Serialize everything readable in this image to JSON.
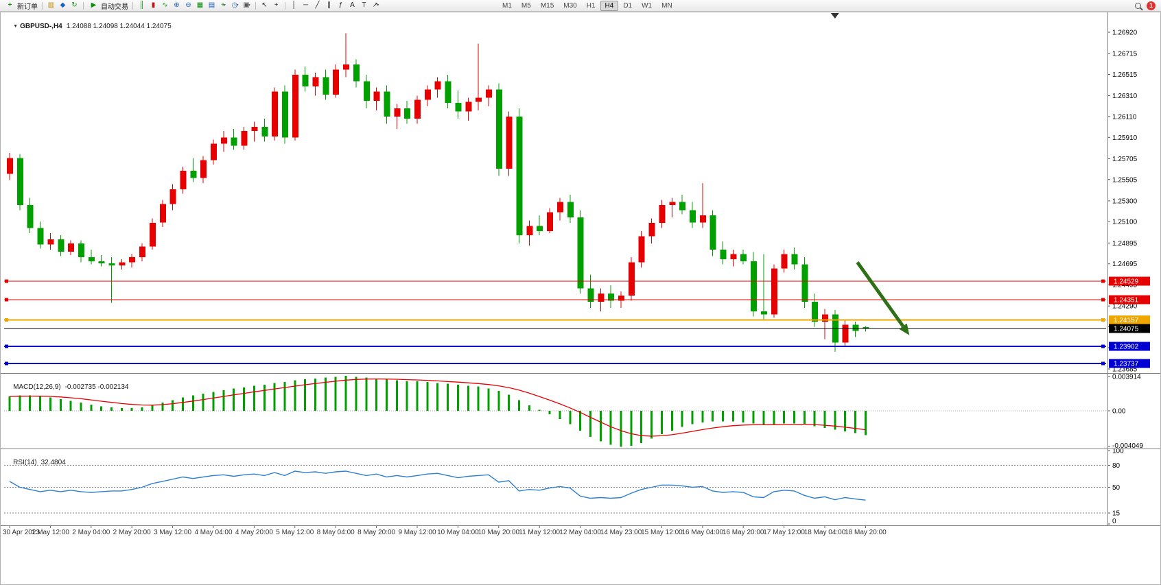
{
  "toolbar": {
    "new_order": {
      "icon": "new-order-icon",
      "label": "新订单"
    },
    "quick_icons": [
      "charts-icon",
      "profiles-icon",
      "refresh-icon"
    ],
    "autotrading": {
      "icon": "autotrading-icon",
      "label": "自动交易"
    },
    "chart_tools": [
      "bars-icon",
      "candles-icon",
      "line-chart-icon",
      "zoom-in-icon",
      "zoom-out-icon",
      "tile-windows-icon",
      "arrange-icon",
      "new-chart-icon",
      "period-clock-icon",
      "templates-icon"
    ],
    "pointer_tools": [
      "cursor-icon",
      "crosshair-icon"
    ],
    "draw_tools": [
      "vertical-line-icon",
      "horizontal-line-icon",
      "trendline-icon",
      "channel-icon",
      "fibonacci-icon",
      "text-icon",
      "label-icon",
      "arrows-icon"
    ],
    "timeframes": [
      "M1",
      "M5",
      "M15",
      "M30",
      "H1",
      "H4",
      "D1",
      "W1",
      "MN"
    ],
    "active_timeframe": "H4",
    "notification": {
      "count": "1",
      "color": "#e03131"
    }
  },
  "chart_data": [
    {
      "type": "candlestick",
      "symbol_text": "GBPUSD-,H4",
      "ohlc_text": "1.24088 1.24098 1.24044 1.24075",
      "timeframe": "H4",
      "up_color": "#e60000",
      "down_color": "#00a000",
      "label_every": 4,
      "x_labels": [
        "30 Apr 2023",
        "1 May 12:00",
        "2 May 04:00",
        "2 May 20:00",
        "3 May 12:00",
        "4 May 04:00",
        "4 May 20:00",
        "5 May 12:00",
        "8 May 04:00",
        "8 May 20:00",
        "9 May 12:00",
        "10 May 04:00",
        "10 May 20:00",
        "11 May 12:00",
        "12 May 04:00",
        "14 May 23:00",
        "15 May 12:00",
        "16 May 04:00",
        "16 May 20:00",
        "17 May 12:00",
        "18 May 04:00",
        "18 May 20:00"
      ],
      "y_axis_ticks": [
        "1.26920",
        "1.26715",
        "1.26515",
        "1.26310",
        "1.26110",
        "1.25910",
        "1.25705",
        "1.25505",
        "1.25300",
        "1.25100",
        "1.24895",
        "1.24695",
        "1.24495",
        "1.24290",
        "1.24090",
        "1.23890",
        "1.23685"
      ],
      "candles": [
        [
          1.2556,
          1.2576,
          1.255,
          1.2571
        ],
        [
          1.2571,
          1.2575,
          1.2521,
          1.2526
        ],
        [
          1.2526,
          1.2533,
          1.2499,
          1.2504
        ],
        [
          1.2504,
          1.251,
          1.2484,
          1.2488
        ],
        [
          1.2488,
          1.2499,
          1.2483,
          1.2493
        ],
        [
          1.2493,
          1.2497,
          1.2477,
          1.2481
        ],
        [
          1.2481,
          1.2492,
          1.2478,
          1.2489
        ],
        [
          1.2489,
          1.2492,
          1.2471,
          1.2476
        ],
        [
          1.2476,
          1.2483,
          1.2469,
          1.2472
        ],
        [
          1.2472,
          1.2478,
          1.2467,
          1.247
        ],
        [
          1.247,
          1.2476,
          1.2432,
          1.2468
        ],
        [
          1.2468,
          1.2474,
          1.2464,
          1.2471
        ],
        [
          1.2471,
          1.2479,
          1.2466,
          1.2476
        ],
        [
          1.2476,
          1.2489,
          1.2472,
          1.2486
        ],
        [
          1.2486,
          1.2513,
          1.2483,
          1.2509
        ],
        [
          1.2509,
          1.2531,
          1.2505,
          1.2527
        ],
        [
          1.2527,
          1.2546,
          1.2521,
          1.2541
        ],
        [
          1.2541,
          1.2563,
          1.2537,
          1.2559
        ],
        [
          1.2559,
          1.2571,
          1.2548,
          1.2552
        ],
        [
          1.2552,
          1.2573,
          1.2547,
          1.2569
        ],
        [
          1.2569,
          1.2589,
          1.2565,
          1.2585
        ],
        [
          1.2585,
          1.2597,
          1.2577,
          1.2591
        ],
        [
          1.2591,
          1.2599,
          1.2579,
          1.2583
        ],
        [
          1.2583,
          1.2601,
          1.2579,
          1.2597
        ],
        [
          1.2597,
          1.2606,
          1.2587,
          1.2601
        ],
        [
          1.2601,
          1.2609,
          1.2587,
          1.2592
        ],
        [
          1.2592,
          1.2639,
          1.2588,
          1.2635
        ],
        [
          1.2635,
          1.2641,
          1.2585,
          1.2591
        ],
        [
          1.2591,
          1.2656,
          1.2588,
          1.2651
        ],
        [
          1.2651,
          1.2659,
          1.2635,
          1.264
        ],
        [
          1.264,
          1.2653,
          1.2631,
          1.2649
        ],
        [
          1.2649,
          1.2656,
          1.2627,
          1.2632
        ],
        [
          1.2632,
          1.2661,
          1.2629,
          1.2656
        ],
        [
          1.2656,
          1.2691,
          1.2649,
          1.2661
        ],
        [
          1.2661,
          1.2666,
          1.2639,
          1.2645
        ],
        [
          1.2645,
          1.2651,
          1.2619,
          1.2626
        ],
        [
          1.2626,
          1.2639,
          1.2617,
          1.2635
        ],
        [
          1.2635,
          1.2641,
          1.2604,
          1.2611
        ],
        [
          1.2611,
          1.2623,
          1.2599,
          1.2619
        ],
        [
          1.2619,
          1.2626,
          1.2604,
          1.2609
        ],
        [
          1.2609,
          1.2631,
          1.2604,
          1.2627
        ],
        [
          1.2627,
          1.2641,
          1.2621,
          1.2637
        ],
        [
          1.2637,
          1.2649,
          1.2629,
          1.2645
        ],
        [
          1.2645,
          1.2651,
          1.2619,
          1.2624
        ],
        [
          1.2624,
          1.2636,
          1.2609,
          1.2616
        ],
        [
          1.2616,
          1.2629,
          1.2607,
          1.2625
        ],
        [
          1.2625,
          1.2681,
          1.2617,
          1.2629
        ],
        [
          1.2629,
          1.2641,
          1.2621,
          1.2637
        ],
        [
          1.2637,
          1.2643,
          1.2554,
          1.2561
        ],
        [
          1.2561,
          1.2616,
          1.2554,
          1.2611
        ],
        [
          1.2611,
          1.2619,
          1.2489,
          1.2497
        ],
        [
          1.2497,
          1.2511,
          1.2487,
          1.2506
        ],
        [
          1.2506,
          1.2516,
          1.2497,
          1.2501
        ],
        [
          1.2501,
          1.2523,
          1.2499,
          1.2519
        ],
        [
          1.2519,
          1.2533,
          1.2511,
          1.2529
        ],
        [
          1.2529,
          1.2536,
          1.2509,
          1.2514
        ],
        [
          1.2514,
          1.2521,
          1.2441,
          1.2446
        ],
        [
          1.2446,
          1.2459,
          1.2427,
          1.2433
        ],
        [
          1.2433,
          1.2446,
          1.2424,
          1.2441
        ],
        [
          1.2441,
          1.2449,
          1.2427,
          1.2434
        ],
        [
          1.2434,
          1.2443,
          1.2427,
          1.2439
        ],
        [
          1.2439,
          1.2476,
          1.2434,
          1.2471
        ],
        [
          1.2471,
          1.2501,
          1.2466,
          1.2496
        ],
        [
          1.2496,
          1.2513,
          1.2489,
          1.2509
        ],
        [
          1.2509,
          1.2531,
          1.2504,
          1.2526
        ],
        [
          1.2526,
          1.2533,
          1.2514,
          1.2529
        ],
        [
          1.2529,
          1.2536,
          1.2517,
          1.2521
        ],
        [
          1.2521,
          1.2529,
          1.2504,
          1.2509
        ],
        [
          1.2509,
          1.2547,
          1.2504,
          1.2516
        ],
        [
          1.2516,
          1.2521,
          1.2477,
          1.2483
        ],
        [
          1.2483,
          1.2491,
          1.2469,
          1.2474
        ],
        [
          1.2474,
          1.2483,
          1.2467,
          1.2479
        ],
        [
          1.2479,
          1.2483,
          1.2469,
          1.2472
        ],
        [
          1.2472,
          1.2481,
          1.2419,
          1.2424
        ],
        [
          1.2424,
          1.2479,
          1.2416,
          1.2421
        ],
        [
          1.2421,
          1.2469,
          1.2418,
          1.2465
        ],
        [
          1.2465,
          1.2483,
          1.2461,
          1.2479
        ],
        [
          1.2479,
          1.2485,
          1.2464,
          1.2469
        ],
        [
          1.2469,
          1.2476,
          1.2427,
          1.2433
        ],
        [
          1.2433,
          1.2441,
          1.2409,
          1.2414
        ],
        [
          1.2414,
          1.2426,
          1.2397,
          1.2421
        ],
        [
          1.2421,
          1.2425,
          1.2385,
          1.2394
        ],
        [
          1.2394,
          1.2416,
          1.2391,
          1.2411
        ],
        [
          1.2411,
          1.2414,
          1.2399,
          1.2405
        ],
        [
          1.24088,
          1.24098,
          1.24044,
          1.24075
        ]
      ],
      "hlines": [
        {
          "label": "1.24529",
          "price": 1.24529,
          "color": "#e60000",
          "width": 1
        },
        {
          "label": "1.24351",
          "price": 1.24351,
          "color": "#e60000",
          "width": 1
        },
        {
          "label": "1.24157",
          "price": 1.24157,
          "color": "#efa600",
          "width": 2
        },
        {
          "label": "1.23902",
          "price": 1.23902,
          "color": "#0000d2",
          "width": 2
        },
        {
          "label": "1.23737",
          "price": 1.23737,
          "color": "#0000d2",
          "width": 2
        }
      ],
      "current_price": {
        "label": "1.24075",
        "price": 1.24075,
        "color": "#000000"
      },
      "arrow": {
        "from": {
          "index": 83.2,
          "price": 1.2471
        },
        "to": {
          "index": 88.3,
          "price": 1.2401
        },
        "color": "#2d7016"
      },
      "shift_marker_index": 81
    },
    {
      "type": "bar",
      "name": "MACD",
      "label_text": "MACD(12,26,9)",
      "values_text": "-0.002735 -0.002134",
      "histogram_color": "#00a000",
      "signal_color": "#e60000",
      "signal_period": 9,
      "y_axis_ticks": [
        "0.003914",
        "0.00",
        "-0.004049"
      ],
      "histogram": [
        0.0016,
        0.0017,
        0.0017,
        0.0016,
        0.0015,
        0.0013,
        0.0011,
        0.0009,
        0.0007,
        0.0005,
        0.0004,
        0.0003,
        0.0003,
        0.0004,
        0.0006,
        0.0009,
        0.0012,
        0.0015,
        0.0017,
        0.0019,
        0.0021,
        0.0023,
        0.0025,
        0.0026,
        0.0028,
        0.0029,
        0.0031,
        0.0032,
        0.0034,
        0.0035,
        0.0036,
        0.0037,
        0.0038,
        0.0039,
        0.0038,
        0.0037,
        0.0036,
        0.0035,
        0.0034,
        0.0033,
        0.0033,
        0.0032,
        0.0031,
        0.003,
        0.0029,
        0.0028,
        0.0027,
        0.0025,
        0.0022,
        0.0018,
        0.0012,
        0.0006,
        0.0001,
        -0.0004,
        -0.0009,
        -0.0015,
        -0.0022,
        -0.0029,
        -0.0034,
        -0.0038,
        -0.004,
        -0.0039,
        -0.0036,
        -0.0031,
        -0.0026,
        -0.0022,
        -0.0018,
        -0.0015,
        -0.0013,
        -0.0012,
        -0.0012,
        -0.0012,
        -0.0013,
        -0.0014,
        -0.0016,
        -0.0015,
        -0.0014,
        -0.0014,
        -0.0015,
        -0.0017,
        -0.0019,
        -0.0021,
        -0.0023,
        -0.0025,
        -0.0027
      ]
    },
    {
      "type": "line",
      "name": "RSI",
      "label_text": "RSI(14)",
      "value_text": "32.4804",
      "line_color": "#2e7fd2",
      "levels": [
        80,
        50,
        15
      ],
      "y_axis_ticks": [
        "100",
        "80",
        "50",
        "15",
        "0"
      ],
      "values": [
        58,
        50,
        47,
        44,
        46,
        44,
        46,
        44,
        43,
        44,
        45,
        45,
        47,
        50,
        55,
        58,
        61,
        64,
        62,
        64,
        66,
        67,
        65,
        67,
        68,
        66,
        70,
        66,
        72,
        70,
        71,
        69,
        71,
        72,
        69,
        66,
        68,
        64,
        66,
        64,
        66,
        68,
        69,
        66,
        63,
        65,
        66,
        67,
        57,
        59,
        45,
        47,
        46,
        49,
        51,
        49,
        38,
        35,
        36,
        35,
        36,
        42,
        47,
        50,
        53,
        53,
        52,
        50,
        51,
        45,
        43,
        44,
        43,
        37,
        36,
        44,
        46,
        45,
        39,
        35,
        37,
        33,
        36,
        34,
        32.48
      ]
    }
  ]
}
